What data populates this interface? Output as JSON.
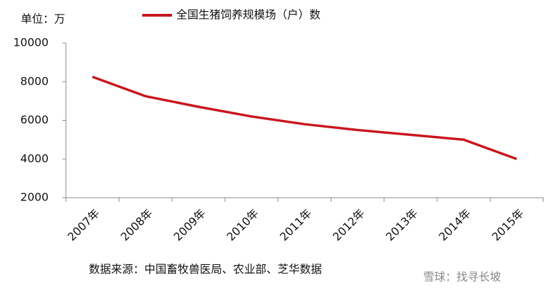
{
  "chart_data": {
    "type": "line",
    "unit_label": "单位：万",
    "source": "数据来源：中国畜牧兽医局、农业部、芝华数据",
    "watermark": "雪球：找寻长坡",
    "categories": [
      "2007年",
      "2008年",
      "2009年",
      "2010年",
      "2011年",
      "2012年",
      "2013年",
      "2014年",
      "2015年"
    ],
    "series": [
      {
        "name": "全国生猪饲养规模场（户）数",
        "color": "#c8161d",
        "values": [
          8250,
          7250,
          6700,
          6200,
          5800,
          5500,
          5250,
          5000,
          4000
        ]
      }
    ],
    "ylim": [
      2000,
      10000
    ],
    "yticks": [
      2000,
      4000,
      6000,
      8000,
      10000
    ],
    "grid": false
  }
}
